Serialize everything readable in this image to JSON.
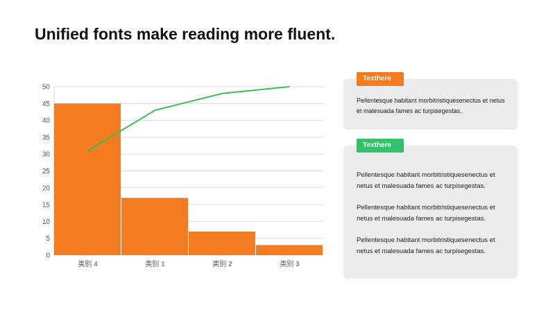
{
  "slide": {
    "title": "Unified fonts make reading more fluent."
  },
  "chart_data": {
    "type": "bar",
    "categories": [
      "类别 4",
      "类别 1",
      "类别 2",
      "类别 3"
    ],
    "values": [
      45,
      17,
      7,
      3
    ],
    "line_values": [
      31,
      43,
      48,
      50
    ],
    "ylim": [
      0,
      50
    ],
    "yticks": [
      0,
      5,
      10,
      15,
      20,
      25,
      30,
      35,
      40,
      45,
      50
    ],
    "grid": true,
    "bar_color": "#f57b20",
    "line_color": "#3cbf5a"
  },
  "cards": [
    {
      "tag": "Texthere",
      "tag_color": "#f57b20",
      "paragraphs": [
        "Pellentesque  habitant morbitristiquesenectus  et netus et malesuada  fames ac turpisegestas."
      ]
    },
    {
      "tag": "Texthere",
      "tag_color": "#33c26a",
      "paragraphs": [
        "Pellentesque habitant morbitristiquesenectus et netus et malesuada fames ac turpisegestas.",
        "Pellentesque habitant morbitristiquesenectus et netus et malesuada fames ac turpisegestas.",
        "Pellentesque habitant morbitristiquesenectus et netus et malesuada fames ac turpisegestas."
      ]
    }
  ]
}
